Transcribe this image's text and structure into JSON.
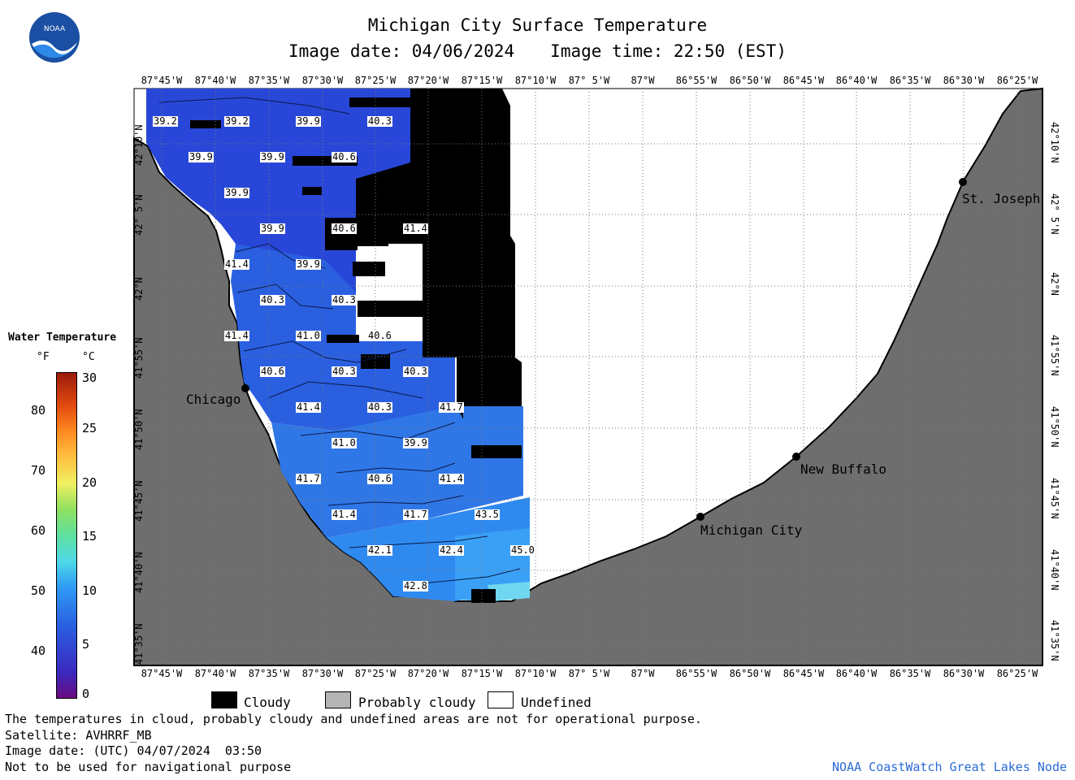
{
  "header": {
    "title": "Michigan City Surface Temperature",
    "image_date": "Image date: 04/06/2024",
    "image_time": "Image time: 22:50 (EST)"
  },
  "logo": {
    "text": "NOAA"
  },
  "map": {
    "lon_labels": [
      "87°45'W",
      "87°40'W",
      "87°35'W",
      "87°30'W",
      "87°25'W",
      "87°20'W",
      "87°15'W",
      "87°10'W",
      "87° 5'W",
      "87°W",
      "86°55'W",
      "86°50'W",
      "86°45'W",
      "86°40'W",
      "86°35'W",
      "86°30'W",
      "86°25'W"
    ],
    "lat_labels": [
      "42°10'N",
      "42° 5'N",
      "42°N",
      "41°55'N",
      "41°50'N",
      "41°45'N",
      "41°40'N",
      "41°35'N"
    ],
    "cities": [
      "Chicago",
      "St. Joseph",
      "New Buffalo",
      "Michigan City"
    ],
    "temperature_labels": [
      "39.2",
      "39.2",
      "39.9",
      "40.3",
      "39.9",
      "39.9",
      "40.6",
      "39.9",
      "39.9",
      "40.6",
      "41.4",
      "41.4",
      "39.9",
      "40.3",
      "40.3",
      "41.4",
      "41.0",
      "40.6",
      "40.6",
      "40.3",
      "40.3",
      "41.4",
      "40.3",
      "41.7",
      "41.0",
      "39.9",
      "41.7",
      "40.6",
      "41.4",
      "41.4",
      "41.7",
      "43.5",
      "42.1",
      "42.4",
      "45.0",
      "42.8"
    ],
    "colors": {
      "land": "#6e6e6e",
      "cloud": "#000000",
      "undefined": "#ffffff"
    }
  },
  "legend": {
    "title": "Water Temperature",
    "unit_f": "°F",
    "unit_c": "°C",
    "f_ticks": [
      "80",
      "70",
      "60",
      "50",
      "40"
    ],
    "c_ticks": [
      "30",
      "25",
      "20",
      "15",
      "10",
      "5",
      "0"
    ]
  },
  "key": [
    {
      "label": "Cloudy",
      "color": "#000000"
    },
    {
      "label": "Probably cloudy",
      "color": "#b4b4b4"
    },
    {
      "label": "Undefined",
      "color": "#ffffff"
    }
  ],
  "footer": {
    "note": "The temperatures in cloud, probably cloudy and undefined areas are not for operational purpose.",
    "satellite": "Satellite: AVHRRF_MB",
    "utc_date": "Image date: (UTC) 04/07/2024  03:50",
    "nav_warning": "Not to be used for navigational purpose",
    "credit": "NOAA CoastWatch Great Lakes Node"
  }
}
